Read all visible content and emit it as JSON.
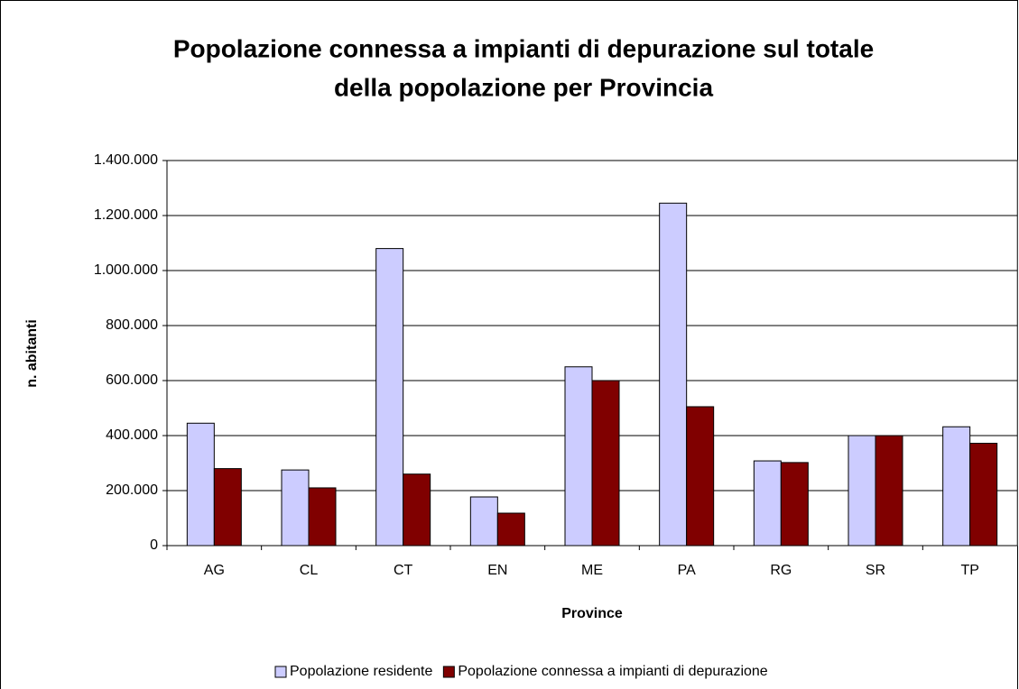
{
  "chart_data": {
    "type": "bar",
    "title": [
      "Popolazione connessa a impianti di depurazione sul totale",
      "della popolazione per Provincia"
    ],
    "x_label": "Province",
    "y_label": "n. abitanti",
    "categories": [
      "AG",
      "CL",
      "CT",
      "EN",
      "ME",
      "PA",
      "RG",
      "SR",
      "TP"
    ],
    "series": [
      {
        "name": "Popolazione residente",
        "color": "#ccccff",
        "values": [
          445000,
          275000,
          1080000,
          177000,
          650000,
          1245000,
          308000,
          400000,
          432000
        ]
      },
      {
        "name": "Popolazione connessa a impianti di depurazione",
        "color": "#800000",
        "values": [
          280000,
          210000,
          260000,
          118000,
          600000,
          505000,
          302000,
          400000,
          372000
        ]
      }
    ],
    "ylim": [
      0,
      1400000
    ],
    "yticks": [
      0,
      {
        "value": 200000,
        "label": "200.000"
      },
      {
        "value": 400000,
        "label": "400.000"
      },
      {
        "value": 600000,
        "label": "600.000"
      },
      {
        "value": 800000,
        "label": "800.000"
      },
      {
        "value": 1000000,
        "label": "1.000.000"
      },
      {
        "value": 1200000,
        "label": "1.200.000"
      },
      {
        "value": 1400000,
        "label": "1.400.000"
      }
    ],
    "grid": true,
    "legend": "bottom"
  }
}
